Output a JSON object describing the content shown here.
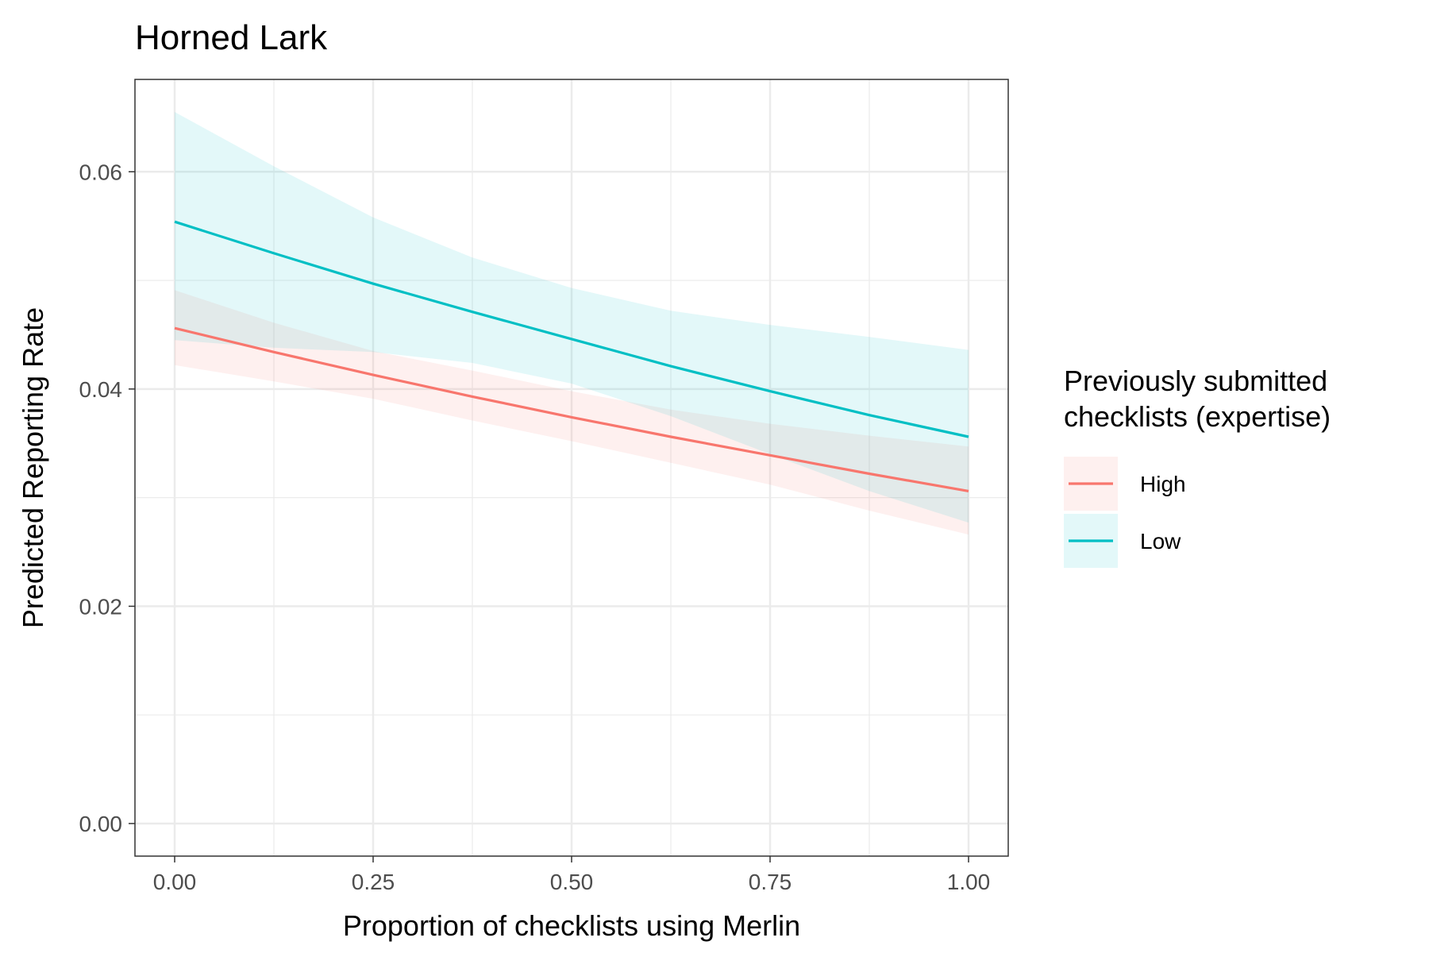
{
  "chart_data": {
    "type": "line",
    "title": "Horned Lark",
    "xlabel": "Proportion of checklists using Merlin",
    "ylabel": "Predicted Reporting Rate",
    "xlim": [
      -0.05,
      1.05
    ],
    "ylim": [
      -0.003,
      0.0685
    ],
    "x_ticks": [
      0,
      0.25,
      0.5,
      0.75,
      1
    ],
    "x_tick_labels": [
      "0.00",
      "0.25",
      "0.50",
      "0.75",
      "1.00"
    ],
    "y_ticks": [
      0,
      0.02,
      0.04,
      0.06
    ],
    "y_tick_labels": [
      "0.00",
      "0.02",
      "0.04",
      "0.06"
    ],
    "grid": true,
    "legend": {
      "title_lines": [
        "Previously submitted",
        "checklists (expertise)"
      ],
      "position": "right"
    },
    "x": [
      0,
      0.125,
      0.25,
      0.375,
      0.5,
      0.625,
      0.75,
      0.875,
      1.0
    ],
    "series": [
      {
        "name": "High",
        "color": "#F8766D",
        "values": [
          0.0456,
          0.0434,
          0.0413,
          0.0393,
          0.0374,
          0.0356,
          0.0339,
          0.0322,
          0.0306
        ],
        "lower": [
          0.0422,
          0.0407,
          0.0391,
          0.0371,
          0.0352,
          0.0332,
          0.0312,
          0.0288,
          0.0266
        ],
        "upper": [
          0.0491,
          0.0461,
          0.0435,
          0.0417,
          0.0398,
          0.0381,
          0.0368,
          0.0357,
          0.0347
        ]
      },
      {
        "name": "Low",
        "color": "#00BFC4",
        "values": [
          0.0554,
          0.0525,
          0.0497,
          0.0471,
          0.0446,
          0.0421,
          0.0398,
          0.0376,
          0.0356
        ],
        "lower": [
          0.0445,
          0.0438,
          0.0434,
          0.0424,
          0.0405,
          0.0375,
          0.034,
          0.0306,
          0.0277
        ],
        "upper": [
          0.0655,
          0.0605,
          0.0558,
          0.0521,
          0.0493,
          0.0472,
          0.0459,
          0.0448,
          0.0436
        ]
      }
    ]
  }
}
